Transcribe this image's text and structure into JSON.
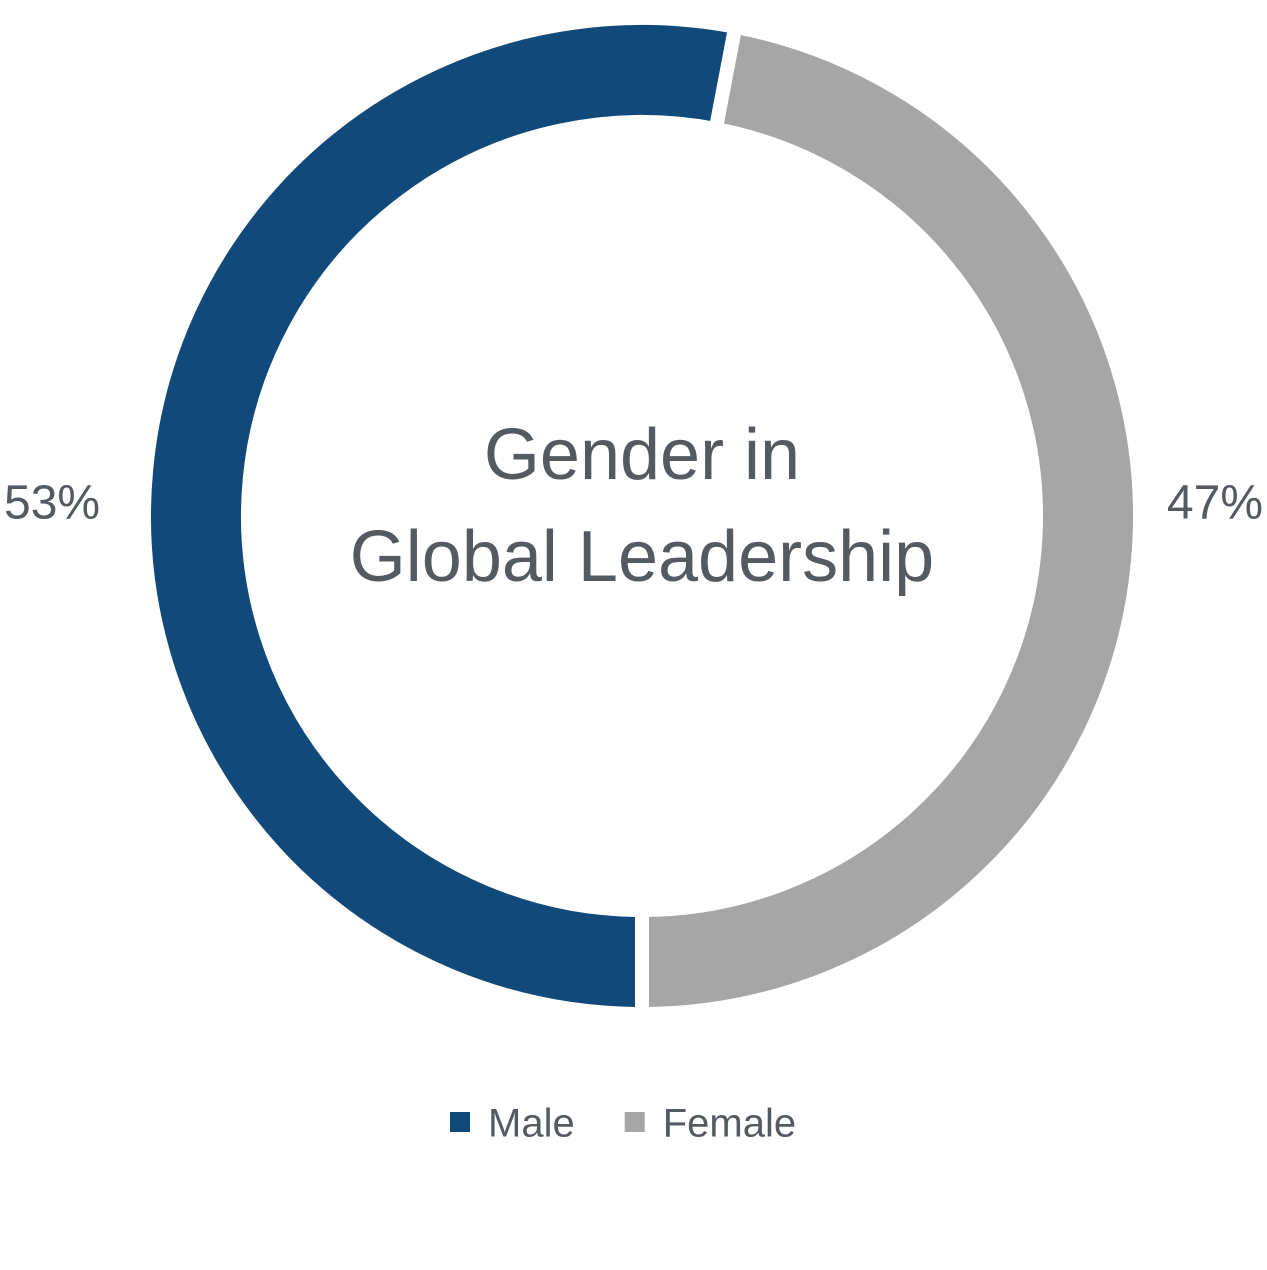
{
  "chart_data": {
    "type": "donut",
    "title": [
      "Gender in",
      "Global Leadership"
    ],
    "categories": [
      "Male",
      "Female"
    ],
    "values": [
      53,
      47
    ],
    "value_labels": [
      "53%",
      "47%"
    ],
    "colors": [
      "#114a7a",
      "#a6a6a6"
    ],
    "legend": "bottom"
  }
}
